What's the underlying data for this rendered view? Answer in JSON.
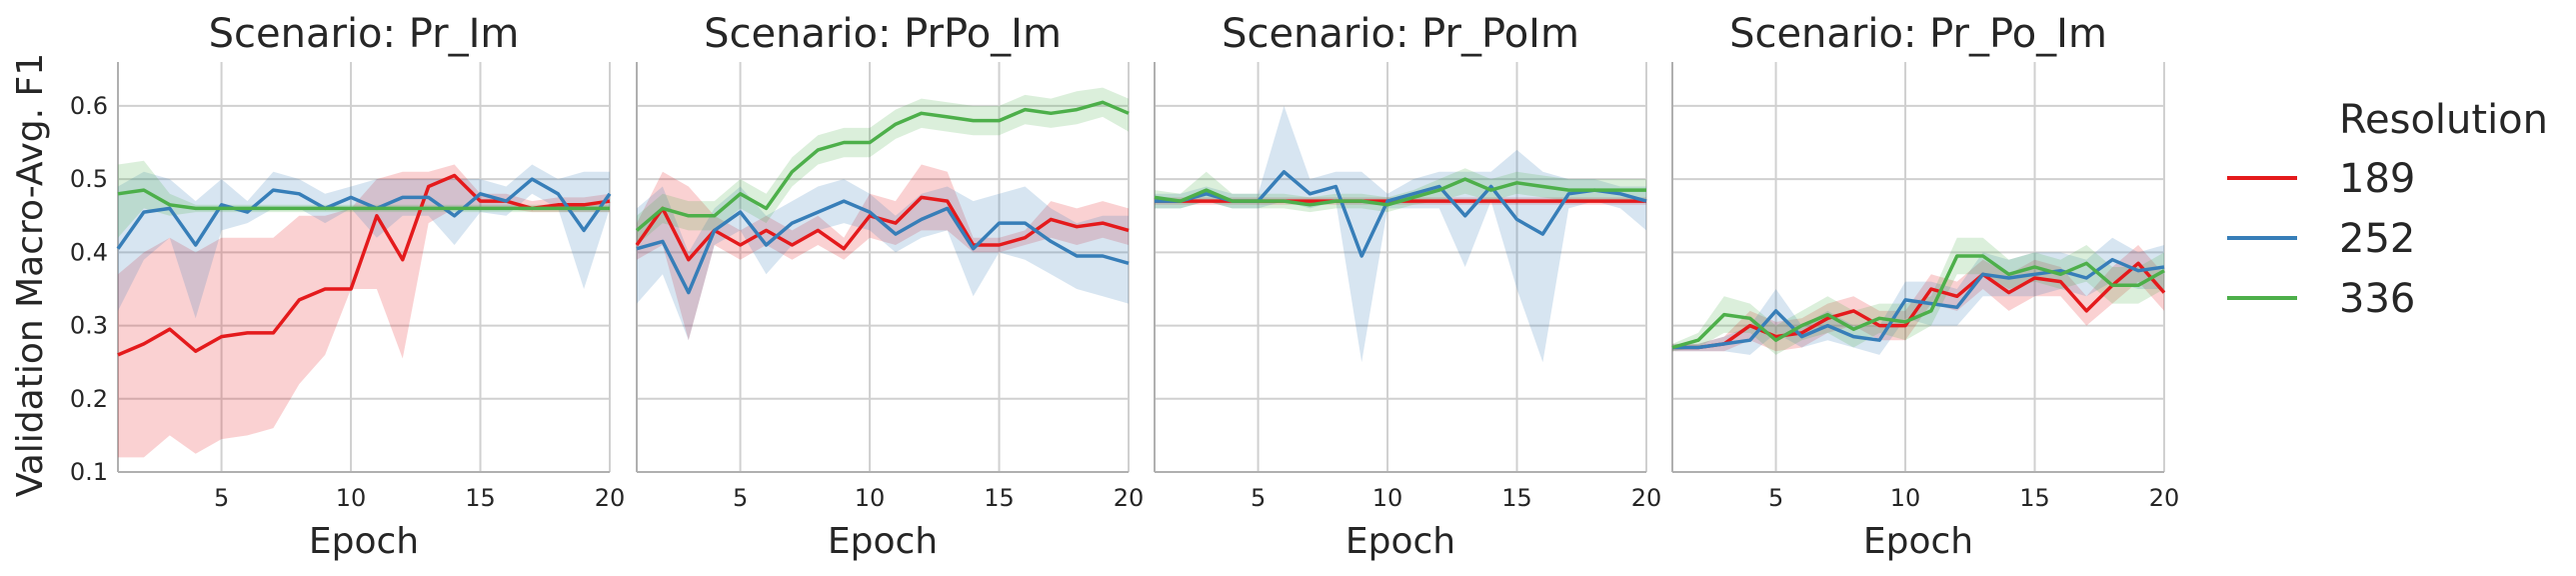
{
  "chart_data": {
    "type": "line",
    "ylabel": "Validation Macro-Avg. F1",
    "xlabel": "Epoch",
    "xlim": [
      1,
      20
    ],
    "ylim": [
      0.1,
      0.66
    ],
    "xticks": [
      5,
      10,
      15,
      20
    ],
    "yticks": [
      0.1,
      0.2,
      0.3,
      0.4,
      0.5,
      0.6
    ],
    "ytick_labels": [
      "0.1",
      "0.2",
      "0.3",
      "0.4",
      "0.5",
      "0.6"
    ],
    "grid": true,
    "legend": {
      "title": "Resolution",
      "placement": "right",
      "entries": [
        {
          "label": "189",
          "color": "#e41a1c"
        },
        {
          "label": "252",
          "color": "#377eb8"
        },
        {
          "label": "336",
          "color": "#4daf4a"
        }
      ]
    },
    "panels": [
      {
        "title": "Scenario: Pr_Im",
        "x": [
          1,
          2,
          3,
          4,
          5,
          6,
          7,
          8,
          9,
          10,
          11,
          12,
          13,
          14,
          15,
          16,
          17,
          18,
          19,
          20
        ],
        "series": [
          {
            "name": "189",
            "color": "#e41a1c",
            "values": [
              0.26,
              0.275,
              0.295,
              0.265,
              0.285,
              0.29,
              0.29,
              0.335,
              0.35,
              0.35,
              0.45,
              0.39,
              0.49,
              0.505,
              0.47,
              0.47,
              0.46,
              0.465,
              0.465,
              0.47
            ],
            "lower": [
              0.12,
              0.12,
              0.15,
              0.125,
              0.145,
              0.15,
              0.16,
              0.22,
              0.26,
              0.35,
              0.35,
              0.255,
              0.44,
              0.46,
              0.46,
              0.46,
              0.455,
              0.455,
              0.455,
              0.455
            ],
            "upper": [
              0.37,
              0.4,
              0.42,
              0.4,
              0.42,
              0.42,
              0.42,
              0.45,
              0.45,
              0.46,
              0.5,
              0.51,
              0.51,
              0.52,
              0.48,
              0.48,
              0.47,
              0.475,
              0.475,
              0.48
            ]
          },
          {
            "name": "252",
            "color": "#377eb8",
            "values": [
              0.405,
              0.455,
              0.46,
              0.41,
              0.465,
              0.455,
              0.485,
              0.48,
              0.46,
              0.475,
              0.46,
              0.475,
              0.475,
              0.45,
              0.48,
              0.47,
              0.5,
              0.48,
              0.43,
              0.48
            ],
            "lower": [
              0.32,
              0.39,
              0.42,
              0.31,
              0.43,
              0.44,
              0.46,
              0.46,
              0.44,
              0.46,
              0.42,
              0.45,
              0.45,
              0.41,
              0.455,
              0.45,
              0.48,
              0.46,
              0.35,
              0.46
            ],
            "upper": [
              0.49,
              0.51,
              0.5,
              0.47,
              0.5,
              0.47,
              0.51,
              0.5,
              0.48,
              0.49,
              0.5,
              0.5,
              0.5,
              0.5,
              0.5,
              0.49,
              0.52,
              0.5,
              0.51,
              0.51
            ]
          },
          {
            "name": "336",
            "color": "#4daf4a",
            "values": [
              0.48,
              0.485,
              0.465,
              0.46,
              0.46,
              0.46,
              0.46,
              0.46,
              0.46,
              0.46,
              0.46,
              0.46,
              0.46,
              0.46,
              0.46,
              0.46,
              0.46,
              0.46,
              0.46,
              0.46
            ],
            "lower": [
              0.42,
              0.46,
              0.45,
              0.455,
              0.455,
              0.455,
              0.455,
              0.455,
              0.455,
              0.455,
              0.455,
              0.455,
              0.455,
              0.455,
              0.455,
              0.455,
              0.455,
              0.455,
              0.455,
              0.455
            ],
            "upper": [
              0.52,
              0.525,
              0.48,
              0.465,
              0.465,
              0.465,
              0.465,
              0.465,
              0.465,
              0.465,
              0.465,
              0.465,
              0.465,
              0.465,
              0.465,
              0.465,
              0.465,
              0.465,
              0.465,
              0.465
            ]
          }
        ]
      },
      {
        "title": "Scenario: PrPo_Im",
        "x": [
          1,
          2,
          3,
          4,
          5,
          6,
          7,
          8,
          9,
          10,
          11,
          12,
          13,
          14,
          15,
          16,
          17,
          18,
          19,
          20
        ],
        "series": [
          {
            "name": "189",
            "color": "#e41a1c",
            "values": [
              0.41,
              0.46,
              0.39,
              0.43,
              0.41,
              0.43,
              0.41,
              0.43,
              0.405,
              0.45,
              0.44,
              0.475,
              0.47,
              0.41,
              0.41,
              0.42,
              0.445,
              0.435,
              0.44,
              0.43
            ],
            "lower": [
              0.39,
              0.41,
              0.28,
              0.41,
              0.39,
              0.41,
              0.39,
              0.41,
              0.39,
              0.42,
              0.41,
              0.43,
              0.43,
              0.4,
              0.4,
              0.41,
              0.42,
              0.41,
              0.42,
              0.41
            ],
            "upper": [
              0.44,
              0.51,
              0.49,
              0.45,
              0.43,
              0.45,
              0.43,
              0.45,
              0.42,
              0.48,
              0.47,
              0.52,
              0.51,
              0.42,
              0.42,
              0.43,
              0.47,
              0.46,
              0.47,
              0.46
            ]
          },
          {
            "name": "252",
            "color": "#377eb8",
            "values": [
              0.405,
              0.415,
              0.345,
              0.43,
              0.455,
              0.41,
              0.44,
              0.455,
              0.47,
              0.455,
              0.425,
              0.445,
              0.46,
              0.405,
              0.44,
              0.44,
              0.415,
              0.395,
              0.395,
              0.385
            ],
            "lower": [
              0.33,
              0.37,
              0.28,
              0.41,
              0.43,
              0.37,
              0.41,
              0.43,
              0.44,
              0.43,
              0.4,
              0.42,
              0.43,
              0.34,
              0.4,
              0.39,
              0.37,
              0.35,
              0.34,
              0.33
            ],
            "upper": [
              0.46,
              0.49,
              0.4,
              0.46,
              0.49,
              0.45,
              0.47,
              0.49,
              0.5,
              0.48,
              0.45,
              0.48,
              0.49,
              0.47,
              0.48,
              0.49,
              0.46,
              0.44,
              0.45,
              0.45
            ]
          },
          {
            "name": "336",
            "color": "#4daf4a",
            "values": [
              0.43,
              0.46,
              0.45,
              0.45,
              0.48,
              0.46,
              0.51,
              0.54,
              0.55,
              0.55,
              0.575,
              0.59,
              0.585,
              0.58,
              0.58,
              0.595,
              0.59,
              0.595,
              0.605,
              0.59
            ],
            "lower": [
              0.41,
              0.44,
              0.43,
              0.43,
              0.46,
              0.44,
              0.49,
              0.52,
              0.53,
              0.53,
              0.555,
              0.57,
              0.565,
              0.56,
              0.56,
              0.575,
              0.57,
              0.575,
              0.585,
              0.565
            ],
            "upper": [
              0.45,
              0.48,
              0.47,
              0.47,
              0.5,
              0.48,
              0.53,
              0.56,
              0.57,
              0.57,
              0.595,
              0.61,
              0.605,
              0.6,
              0.6,
              0.615,
              0.61,
              0.62,
              0.625,
              0.61
            ]
          }
        ]
      },
      {
        "title": "Scenario: Pr_PoIm",
        "x": [
          1,
          2,
          3,
          4,
          5,
          6,
          7,
          8,
          9,
          10,
          11,
          12,
          13,
          14,
          15,
          16,
          17,
          18,
          19,
          20
        ],
        "series": [
          {
            "name": "189",
            "color": "#e41a1c",
            "values": [
              0.47,
              0.47,
              0.47,
              0.47,
              0.47,
              0.47,
              0.47,
              0.47,
              0.47,
              0.47,
              0.47,
              0.47,
              0.47,
              0.47,
              0.47,
              0.47,
              0.47,
              0.47,
              0.47,
              0.47
            ],
            "lower": [
              0.465,
              0.465,
              0.465,
              0.465,
              0.465,
              0.465,
              0.465,
              0.465,
              0.465,
              0.465,
              0.465,
              0.465,
              0.465,
              0.465,
              0.465,
              0.465,
              0.465,
              0.465,
              0.465,
              0.465
            ],
            "upper": [
              0.475,
              0.475,
              0.475,
              0.475,
              0.475,
              0.475,
              0.475,
              0.475,
              0.475,
              0.475,
              0.475,
              0.475,
              0.475,
              0.475,
              0.475,
              0.475,
              0.475,
              0.475,
              0.475,
              0.475
            ]
          },
          {
            "name": "252",
            "color": "#377eb8",
            "values": [
              0.47,
              0.47,
              0.48,
              0.47,
              0.47,
              0.51,
              0.48,
              0.49,
              0.395,
              0.47,
              0.48,
              0.49,
              0.45,
              0.49,
              0.445,
              0.425,
              0.48,
              0.485,
              0.48,
              0.47
            ],
            "lower": [
              0.46,
              0.46,
              0.47,
              0.46,
              0.46,
              0.47,
              0.46,
              0.47,
              0.25,
              0.46,
              0.46,
              0.46,
              0.38,
              0.47,
              0.35,
              0.25,
              0.46,
              0.47,
              0.46,
              0.43
            ],
            "upper": [
              0.48,
              0.48,
              0.49,
              0.48,
              0.48,
              0.6,
              0.5,
              0.51,
              0.51,
              0.48,
              0.5,
              0.51,
              0.51,
              0.51,
              0.54,
              0.51,
              0.5,
              0.5,
              0.49,
              0.49
            ]
          },
          {
            "name": "336",
            "color": "#4daf4a",
            "values": [
              0.475,
              0.47,
              0.485,
              0.47,
              0.47,
              0.47,
              0.465,
              0.47,
              0.47,
              0.465,
              0.475,
              0.485,
              0.5,
              0.485,
              0.495,
              0.49,
              0.485,
              0.485,
              0.485,
              0.485
            ],
            "lower": [
              0.46,
              0.46,
              0.47,
              0.46,
              0.46,
              0.46,
              0.455,
              0.46,
              0.46,
              0.455,
              0.465,
              0.47,
              0.48,
              0.47,
              0.48,
              0.475,
              0.47,
              0.47,
              0.47,
              0.47
            ],
            "upper": [
              0.485,
              0.48,
              0.51,
              0.48,
              0.48,
              0.48,
              0.475,
              0.48,
              0.48,
              0.475,
              0.485,
              0.5,
              0.515,
              0.5,
              0.51,
              0.505,
              0.5,
              0.5,
              0.5,
              0.5
            ]
          }
        ]
      },
      {
        "title": "Scenario: Pr_Po_Im",
        "x": [
          1,
          2,
          3,
          4,
          5,
          6,
          7,
          8,
          9,
          10,
          11,
          12,
          13,
          14,
          15,
          16,
          17,
          18,
          19,
          20
        ],
        "series": [
          {
            "name": "189",
            "color": "#e41a1c",
            "values": [
              0.27,
              0.27,
              0.275,
              0.3,
              0.285,
              0.29,
              0.31,
              0.32,
              0.3,
              0.3,
              0.35,
              0.34,
              0.37,
              0.345,
              0.365,
              0.36,
              0.32,
              0.355,
              0.385,
              0.345
            ],
            "lower": [
              0.265,
              0.265,
              0.265,
              0.28,
              0.265,
              0.27,
              0.29,
              0.3,
              0.28,
              0.28,
              0.33,
              0.32,
              0.35,
              0.32,
              0.34,
              0.34,
              0.3,
              0.33,
              0.36,
              0.32
            ],
            "upper": [
              0.275,
              0.275,
              0.285,
              0.32,
              0.305,
              0.31,
              0.33,
              0.34,
              0.32,
              0.32,
              0.37,
              0.36,
              0.39,
              0.37,
              0.39,
              0.38,
              0.34,
              0.38,
              0.41,
              0.37
            ]
          },
          {
            "name": "252",
            "color": "#377eb8",
            "values": [
              0.27,
              0.27,
              0.275,
              0.28,
              0.32,
              0.285,
              0.3,
              0.285,
              0.28,
              0.335,
              0.33,
              0.325,
              0.37,
              0.365,
              0.37,
              0.375,
              0.365,
              0.39,
              0.375,
              0.38
            ],
            "lower": [
              0.265,
              0.265,
              0.265,
              0.26,
              0.29,
              0.27,
              0.28,
              0.27,
              0.26,
              0.31,
              0.3,
              0.3,
              0.34,
              0.34,
              0.34,
              0.35,
              0.34,
              0.36,
              0.35,
              0.35
            ],
            "upper": [
              0.275,
              0.275,
              0.285,
              0.3,
              0.35,
              0.3,
              0.32,
              0.3,
              0.3,
              0.36,
              0.36,
              0.35,
              0.4,
              0.39,
              0.4,
              0.4,
              0.39,
              0.42,
              0.4,
              0.41
            ]
          },
          {
            "name": "336",
            "color": "#4daf4a",
            "values": [
              0.27,
              0.28,
              0.315,
              0.31,
              0.28,
              0.3,
              0.315,
              0.295,
              0.31,
              0.305,
              0.32,
              0.395,
              0.395,
              0.37,
              0.38,
              0.37,
              0.385,
              0.355,
              0.355,
              0.375
            ],
            "lower": [
              0.265,
              0.27,
              0.29,
              0.29,
              0.26,
              0.28,
              0.29,
              0.27,
              0.29,
              0.28,
              0.3,
              0.37,
              0.37,
              0.35,
              0.36,
              0.35,
              0.36,
              0.33,
              0.33,
              0.35
            ],
            "upper": [
              0.275,
              0.29,
              0.34,
              0.33,
              0.3,
              0.32,
              0.34,
              0.32,
              0.33,
              0.33,
              0.34,
              0.42,
              0.42,
              0.39,
              0.4,
              0.39,
              0.41,
              0.38,
              0.38,
              0.4
            ]
          }
        ]
      }
    ]
  }
}
